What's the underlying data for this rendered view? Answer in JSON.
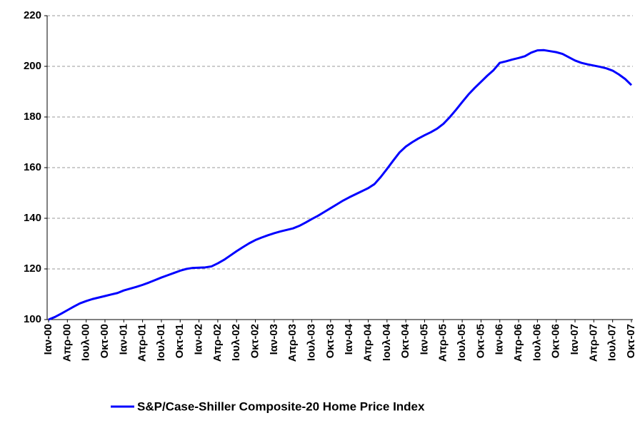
{
  "chart_data": {
    "type": "line",
    "categories": [
      "Ιαν-00",
      null,
      null,
      "Απρ-00",
      null,
      null,
      "Ιουλ-00",
      null,
      null,
      "Οκτ-00",
      null,
      null,
      "Ιαν-01",
      null,
      null,
      "Απρ-01",
      null,
      null,
      "Ιουλ-01",
      null,
      null,
      "Οκτ-01",
      null,
      null,
      "Ιαν-02",
      null,
      null,
      "Απρ-02",
      null,
      null,
      "Ιουλ-02",
      null,
      null,
      "Οκτ-02",
      null,
      null,
      "Ιαν-03",
      null,
      null,
      "Απρ-03",
      null,
      null,
      "Ιουλ-03",
      null,
      null,
      "Οκτ-03",
      null,
      null,
      "Ιαν-04",
      null,
      null,
      "Απρ-04",
      null,
      null,
      "Ιουλ-04",
      null,
      null,
      "Οκτ-04",
      null,
      null,
      "Ιαν-05",
      null,
      null,
      "Απρ-05",
      null,
      null,
      "Ιουλ-05",
      null,
      null,
      "Οκτ-05",
      null,
      null,
      "Ιαν-06",
      null,
      null,
      "Απρ-06",
      null,
      null,
      "Ιουλ-06",
      null,
      null,
      "Οκτ-06",
      null,
      null,
      "Ιαν-07",
      null,
      null,
      "Απρ-07",
      null,
      null,
      "Ιουλ-07",
      null,
      null,
      "Οκτ-07"
    ],
    "series": [
      {
        "name": "S&P/Case-Shiller Composite-20 Home Price Index",
        "color": "#0000ff",
        "values": [
          100.0,
          101.0,
          102.3,
          103.7,
          105.1,
          106.4,
          107.3,
          108.1,
          108.7,
          109.3,
          109.9,
          110.5,
          111.5,
          112.2,
          112.9,
          113.7,
          114.6,
          115.6,
          116.6,
          117.5,
          118.4,
          119.3,
          120.0,
          120.4,
          120.5,
          120.6,
          121.0,
          122.2,
          123.6,
          125.3,
          127.0,
          128.6,
          130.1,
          131.4,
          132.4,
          133.3,
          134.1,
          134.8,
          135.4,
          136.0,
          137.0,
          138.3,
          139.7,
          141.0,
          142.5,
          144.0,
          145.5,
          147.0,
          148.3,
          149.5,
          150.7,
          151.9,
          153.5,
          156.3,
          159.5,
          162.8,
          166.0,
          168.3,
          170.0,
          171.5,
          172.8,
          174.0,
          175.4,
          177.3,
          179.9,
          182.8,
          185.9,
          188.9,
          191.5,
          193.9,
          196.3,
          198.5,
          201.4,
          202.0,
          202.7,
          203.3,
          204.0,
          205.4,
          206.3,
          206.4,
          206.0,
          205.6,
          204.9,
          203.6,
          202.3,
          201.4,
          200.8,
          200.3,
          199.8,
          199.2,
          198.3,
          196.8,
          195.0,
          192.6
        ]
      }
    ],
    "ylim": [
      100,
      220
    ],
    "yticks": [
      100,
      120,
      140,
      160,
      180,
      200,
      220
    ],
    "grid": true
  }
}
